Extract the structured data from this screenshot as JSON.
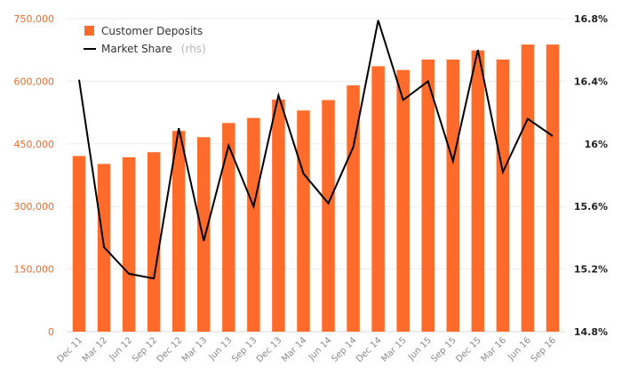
{
  "chart_data": {
    "type": "bar",
    "categories": [
      "Dec 11",
      "Mar 12",
      "Jun 12",
      "Sep 12",
      "Dec 12",
      "Mar 13",
      "Jun 13",
      "Sep 13",
      "Dec 13",
      "Mar 14",
      "Jun 14",
      "Sep 14",
      "Dec 14",
      "Mar 15",
      "Jun 15",
      "Sep 15",
      "Dec 15",
      "Mar 16",
      "Jun 16",
      "Sep 16"
    ],
    "series": [
      {
        "name": "Customer Deposits",
        "type": "bar",
        "axis": "left",
        "color": "#ff6b2b",
        "values": [
          421000,
          402000,
          418000,
          430000,
          481000,
          466000,
          500000,
          512000,
          556000,
          530000,
          555000,
          590000,
          636000,
          627000,
          652000,
          652000,
          674000,
          652000,
          688000,
          688000
        ]
      },
      {
        "name": "Market Share",
        "type": "line",
        "axis": "right",
        "color": "#000000",
        "values": [
          16.41,
          15.34,
          15.17,
          15.14,
          16.1,
          15.38,
          15.99,
          15.6,
          16.31,
          15.81,
          15.62,
          15.98,
          16.79,
          16.28,
          16.4,
          15.89,
          16.6,
          15.82,
          16.16,
          16.05
        ]
      }
    ],
    "y_left": {
      "ylim": [
        0,
        750000
      ],
      "ticks": [
        0,
        150000,
        300000,
        450000,
        600000,
        750000
      ],
      "tick_labels": [
        "0",
        "150,000",
        "300,000",
        "450,000",
        "600,000",
        "750,000"
      ]
    },
    "y_right": {
      "ylim": [
        14.8,
        16.8
      ],
      "ticks": [
        14.8,
        15.2,
        15.6,
        16.0,
        16.4,
        16.8
      ],
      "tick_labels": [
        "14.8%",
        "15.2%",
        "15.6%",
        "16%",
        "16.4%",
        "16.8%"
      ]
    },
    "legend": {
      "placement": "top-left",
      "items": [
        {
          "label": "Customer Deposits",
          "suffix": ""
        },
        {
          "label": "Market Share",
          "suffix": "(rhs)"
        }
      ]
    },
    "grid": true,
    "colors": {
      "bar": "#ff6b2b",
      "line": "#000000",
      "left_ticks": "#f26a2a",
      "right_ticks": "#222222",
      "grid": "#ececec"
    }
  }
}
